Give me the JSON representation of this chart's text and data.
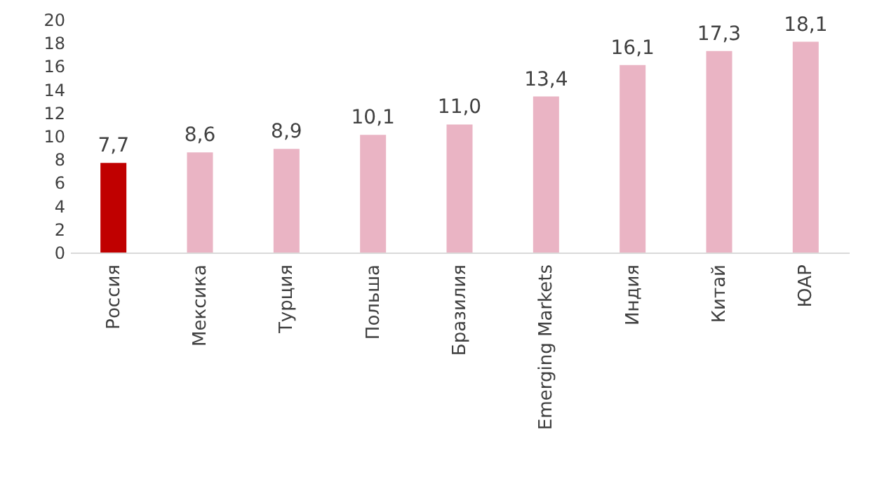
{
  "chart_data": {
    "type": "bar",
    "categories": [
      "Россия",
      "Мексика",
      "Турция",
      "Польша",
      "Бразилия",
      "Emerging Markets",
      "Индия",
      "Китай",
      "ЮАР"
    ],
    "values": [
      7.7,
      8.6,
      8.9,
      10.1,
      11.0,
      13.4,
      16.1,
      17.3,
      18.1
    ],
    "colors": [
      "#c00000",
      "#eab4c4",
      "#eab4c4",
      "#eab4c4",
      "#eab4c4",
      "#eab4c4",
      "#eab4c4",
      "#eab4c4",
      "#eab4c4"
    ],
    "value_labels": [
      "7,7",
      "8,6",
      "8,9",
      "10,1",
      "11,0",
      "13,4",
      "16,1",
      "17,3",
      "18,1"
    ],
    "ylim": [
      0,
      20
    ],
    "yticks": [
      0,
      2,
      4,
      6,
      8,
      10,
      12,
      14,
      16,
      18,
      20
    ],
    "grid": false
  }
}
